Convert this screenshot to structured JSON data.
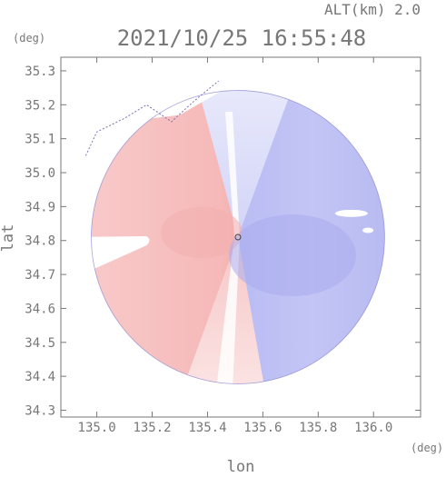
{
  "header": {
    "altitude_label": "ALT(km) 2.0",
    "timestamp": "2021/10/25 16:55:48"
  },
  "chart_data": {
    "type": "heatmap",
    "title": "2021/10/25 16:55:48",
    "subtitle": "ALT(km) 2.0",
    "xlabel": "lon",
    "ylabel": "lat",
    "xunit": "(deg)",
    "yunit": "(deg)",
    "xlim": [
      134.87,
      136.17
    ],
    "ylim": [
      34.28,
      35.34
    ],
    "xticks": [
      135.0,
      135.2,
      135.4,
      135.6,
      135.8,
      136.0
    ],
    "xtick_labels": [
      "135.0",
      "135.2",
      "135.4",
      "135.6",
      "135.8",
      "136.0"
    ],
    "yticks": [
      34.3,
      34.4,
      34.5,
      34.6,
      34.7,
      34.8,
      34.9,
      35.0,
      35.1,
      35.2,
      35.3
    ],
    "ytick_labels": [
      "34.3",
      "34.4",
      "34.5",
      "34.6",
      "34.7",
      "34.8",
      "34.9",
      "35.0",
      "35.1",
      "35.2",
      "35.3"
    ],
    "radar_center": {
      "lon": 135.51,
      "lat": 34.81
    },
    "radar_range_deg": 0.53,
    "blocked_sector": {
      "lon_min": 134.87,
      "lon_max": 135.18,
      "lat_min": 34.67,
      "lat_max": 34.81
    },
    "colors": {
      "west_sector": "#f7c4c4",
      "east_sector": "#c4c6f5",
      "outline": "#444444",
      "axis_text": "#777777"
    },
    "grid": false,
    "legend": "none"
  }
}
